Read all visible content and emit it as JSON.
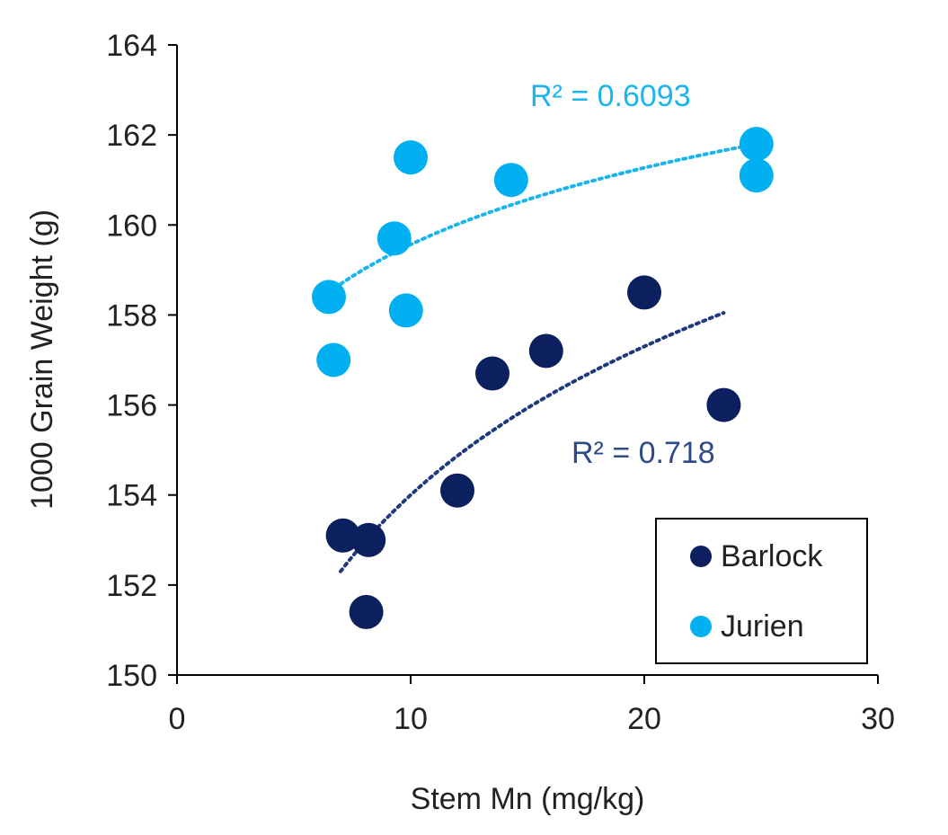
{
  "chart_data": {
    "type": "scatter",
    "xlabel": "Stem Mn (mg/kg)",
    "ylabel": "1000 Grain Weight (g)",
    "xlim": [
      0,
      30
    ],
    "ylim": [
      150,
      164
    ],
    "xticks": [
      0,
      10,
      20,
      30
    ],
    "yticks": [
      150,
      152,
      154,
      156,
      158,
      160,
      162,
      164
    ],
    "grid": false,
    "legend_position": "bottom-right",
    "series": [
      {
        "name": "Barlock",
        "color": "#0c1f5e",
        "points": [
          [
            7.1,
            153.1
          ],
          [
            8.2,
            153.0
          ],
          [
            8.1,
            151.4
          ],
          [
            12.0,
            154.1
          ],
          [
            13.5,
            156.7
          ],
          [
            15.8,
            157.2
          ],
          [
            20.0,
            158.5
          ],
          [
            23.4,
            156.0
          ]
        ],
        "trendline": {
          "type": "logarithmic",
          "a": 143.04,
          "b": 4.76,
          "x_range": [
            7.0,
            23.4
          ],
          "color": "#1f3a7a",
          "r2_label": "R² = 0.718",
          "label_color": "#2e4a8a"
        }
      },
      {
        "name": "Jurien",
        "color": "#00b0f0",
        "points": [
          [
            6.5,
            158.4
          ],
          [
            6.7,
            157.0
          ],
          [
            9.3,
            159.7
          ],
          [
            9.8,
            158.1
          ],
          [
            10.0,
            161.5
          ],
          [
            14.3,
            161.0
          ],
          [
            24.8,
            161.8
          ],
          [
            24.8,
            161.1
          ]
        ],
        "trendline": {
          "type": "logarithmic",
          "a": 153.9,
          "b": 2.46,
          "x_range": [
            6.5,
            24.8
          ],
          "color": "#1ab4ee",
          "r2_label": "R² = 0.6093",
          "label_color": "#1ab4ee"
        }
      }
    ]
  }
}
